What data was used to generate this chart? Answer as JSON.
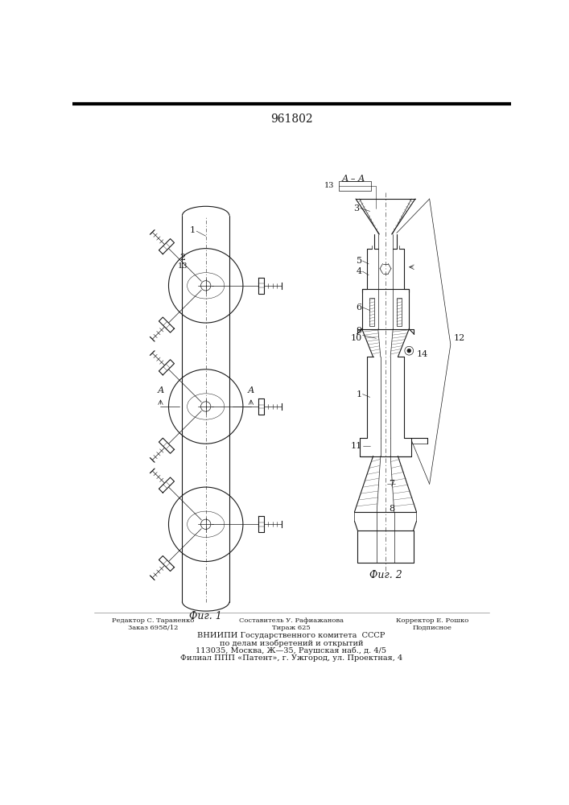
{
  "title": "961802",
  "bg_color": "#ffffff",
  "line_color": "#1a1a1a",
  "fig1_label": "Фиг. 1",
  "fig2_label": "Фиг. 2",
  "footer_col1_line1": "Редактор С. Тараненко",
  "footer_col1_line2": "Заказ 6958/12",
  "footer_col2_line1": "Составитель У. Рафиажанова",
  "footer_col2_line2": "Тираж 625",
  "footer_col3_line1": "Корректор Е. Рошко",
  "footer_col3_line2": "Подписное",
  "footer_line3": "ВНИИПИ Государственного комитета  СССР",
  "footer_line4": "по делам изобретений и открытий",
  "footer_line5": "113035, Москва, Ж—35, Раушская наб., д. 4/5",
  "footer_line6": "Филиал ППП «Патент», г. Ужгород, ул. Проектная, 4"
}
